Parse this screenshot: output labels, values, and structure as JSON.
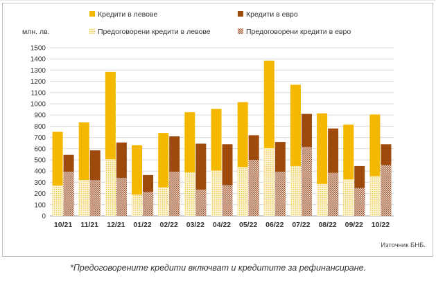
{
  "chart_data": {
    "type": "bar",
    "stacking": "overlay",
    "y_unit_label": "млн. лв.",
    "ylim": [
      0,
      1500
    ],
    "y_ticks": [
      0,
      100,
      200,
      300,
      400,
      500,
      600,
      700,
      800,
      900,
      1000,
      1100,
      1200,
      1300,
      1400,
      1500
    ],
    "categories": [
      "10/21",
      "11/21",
      "12/21",
      "01/22",
      "02/22",
      "03/22",
      "04/22",
      "05/22",
      "06/22",
      "07/22",
      "08/22",
      "09/22",
      "10/22"
    ],
    "series": [
      {
        "name": "Кредити в левове",
        "color": "#f5b800",
        "values": [
          750,
          835,
          1285,
          630,
          740,
          925,
          955,
          1015,
          1385,
          1170,
          915,
          815,
          905
        ]
      },
      {
        "name": "Кредити в евро",
        "color": "#9e4a0c",
        "values": [
          545,
          585,
          655,
          365,
          710,
          645,
          640,
          720,
          660,
          910,
          780,
          445,
          640
        ]
      },
      {
        "name": "Предоговорени кредити в левове",
        "color": "#fbecb4",
        "pattern": "dots",
        "values": [
          270,
          320,
          505,
          190,
          255,
          390,
          405,
          435,
          605,
          445,
          285,
          325,
          355
        ]
      },
      {
        "name": "Предоговорени кредити в евро",
        "color": "#c98a6a",
        "pattern": "checker",
        "values": [
          395,
          320,
          340,
          215,
          395,
          235,
          275,
          500,
          395,
          615,
          385,
          250,
          455
        ]
      }
    ],
    "legend_position": "top",
    "source": "Източник БНБ."
  },
  "footnote": "*Предоговорените кредити включват и кредитите за рефинансиране."
}
